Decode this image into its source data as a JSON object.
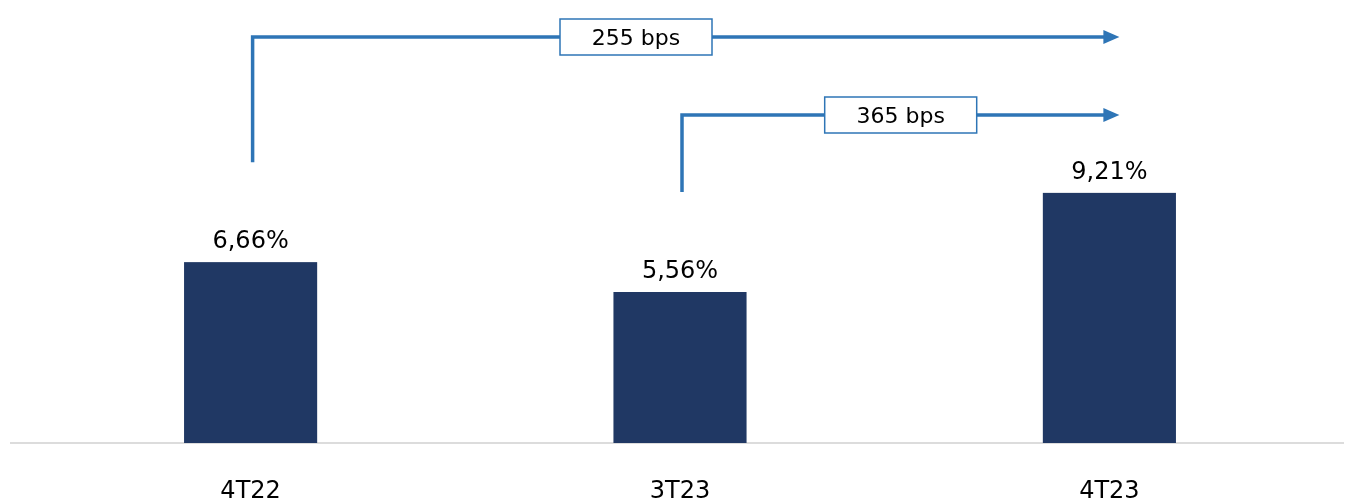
{
  "chart_data": {
    "type": "bar",
    "categories": [
      "4T22",
      "3T23",
      "4T23"
    ],
    "values": [
      6.66,
      5.56,
      9.21
    ],
    "color": "#203864",
    "value_labels": [
      "6,66%",
      "5,56%",
      "9,21%"
    ],
    "annotations": [
      "255 bps",
      "365 bps"
    ]
  }
}
